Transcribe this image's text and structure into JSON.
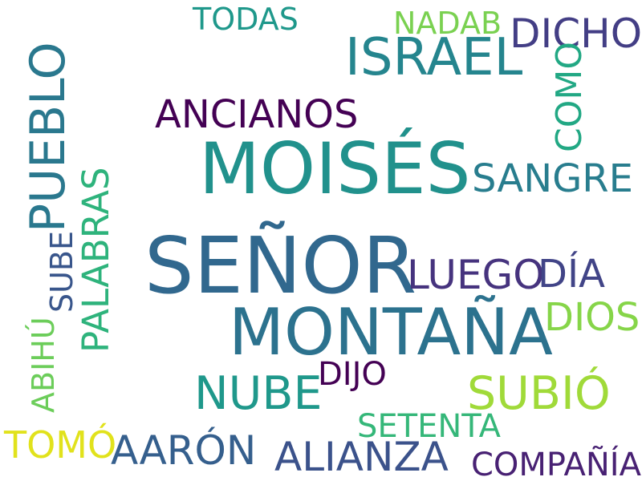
{
  "words": {
    "senor": {
      "text": "SEÑOR",
      "color": "#31688e"
    },
    "moises": {
      "text": "MOISÉS",
      "color": "#21918c"
    },
    "montana": {
      "text": "MONTAÑA",
      "color": "#2c728e"
    },
    "israel": {
      "text": "ISRAEL",
      "color": "#25858e"
    },
    "pueblo": {
      "text": "PUEBLO",
      "color": "#2a788e"
    },
    "ancianos": {
      "text": "ANCIANOS",
      "color": "#440154"
    },
    "sangre": {
      "text": "SANGRE",
      "color": "#287d8e"
    },
    "dicho": {
      "text": "DICHO",
      "color": "#433e85"
    },
    "todas": {
      "text": "TODAS",
      "color": "#1f988b"
    },
    "nadab": {
      "text": "NADAB",
      "color": "#7ad151"
    },
    "como": {
      "text": "COMO",
      "color": "#22a884"
    },
    "palabras": {
      "text": "PALABRAS",
      "color": "#2eb37c"
    },
    "sube": {
      "text": "SUBE",
      "color": "#39568c"
    },
    "abihu": {
      "text": "ABIHÚ",
      "color": "#6ccd5a"
    },
    "luego": {
      "text": "LUEGO",
      "color": "#46337e"
    },
    "dia": {
      "text": "DÍA",
      "color": "#414487"
    },
    "dios": {
      "text": "DIOS",
      "color": "#86d549"
    },
    "nube": {
      "text": "NUBE",
      "color": "#1f988b"
    },
    "dijo": {
      "text": "DIJO",
      "color": "#440154"
    },
    "subio": {
      "text": "SUBIÓ",
      "color": "#a0da39"
    },
    "setenta": {
      "text": "SETENTA",
      "color": "#35b779"
    },
    "tomo": {
      "text": "TOMÓ",
      "color": "#e1e21c"
    },
    "aaron": {
      "text": "AARÓN",
      "color": "#355f8d"
    },
    "alianza": {
      "text": "ALIANZA",
      "color": "#3b528b"
    },
    "compania": {
      "text": "COMPAÑÍA",
      "color": "#482173"
    }
  }
}
